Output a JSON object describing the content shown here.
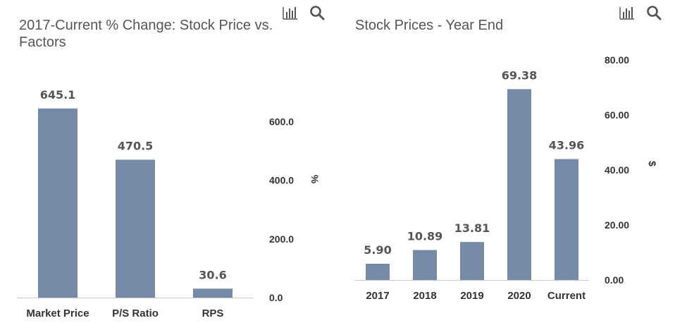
{
  "toolbar_icons": [
    "bar-chart-icon",
    "search-icon"
  ],
  "chart_data": [
    {
      "type": "bar",
      "title": "2017-Current % Change: Stock Price vs. Factors",
      "categories": [
        "Market Price",
        "P/S Ratio",
        "RPS"
      ],
      "values": [
        645.1,
        470.5,
        30.6
      ],
      "value_labels": [
        "645.1",
        "470.5",
        "30.6"
      ],
      "ylabel": "%",
      "y_axis_side": "right",
      "ylim": [
        0,
        700
      ],
      "yticks": [
        0,
        200,
        400,
        600
      ],
      "ytick_labels": [
        "0.0",
        "200.0",
        "400.0",
        "600.0"
      ],
      "bar_color": "#7689a7",
      "grid": false,
      "legend": "none"
    },
    {
      "type": "bar",
      "title": "Stock Prices - Year End",
      "categories": [
        "2017",
        "2018",
        "2019",
        "2020",
        "Current"
      ],
      "values": [
        5.9,
        10.89,
        13.81,
        69.38,
        43.96
      ],
      "value_labels": [
        "5.90",
        "10.89",
        "13.81",
        "69.38",
        "43.96"
      ],
      "ylabel": "$",
      "y_axis_side": "right",
      "ylim": [
        0,
        80
      ],
      "yticks": [
        0,
        20,
        40,
        60,
        80
      ],
      "ytick_labels": [
        "0.00",
        "20.00",
        "40.00",
        "60.00",
        "80.00"
      ],
      "bar_color": "#7689a7",
      "grid": false,
      "legend": "none"
    }
  ]
}
